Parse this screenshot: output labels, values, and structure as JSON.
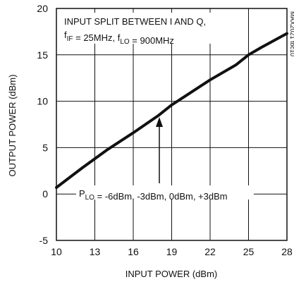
{
  "chart_data": {
    "type": "line",
    "title": "",
    "xlabel": "INPUT POWER (dBm)",
    "ylabel": "OUTPUT POWER (dBm)",
    "xlim": [
      10,
      28
    ],
    "ylim": [
      -5,
      20
    ],
    "x_ticks": [
      "10",
      "13",
      "16",
      "19",
      "22",
      "25",
      "28"
    ],
    "y_ticks": [
      "20",
      "15",
      "10",
      "5",
      "0",
      "-5"
    ],
    "grid": true,
    "series": [
      {
        "x": [
          10,
          12,
          14,
          16,
          18,
          19,
          20,
          22,
          24,
          25,
          26,
          28
        ],
        "y": [
          0.7,
          2.8,
          4.8,
          6.6,
          8.5,
          9.6,
          10.5,
          12.3,
          13.9,
          15.0,
          15.8,
          17.3
        ]
      }
    ],
    "annotations": {
      "condition_line1": "INPUT SPLIT BETWEEN I AND Q,",
      "condition_line2": "f_IF = 25MHz, f_LO = 900MHz",
      "plo_label": "P_LO = -6dBm, -3dBm, 0dBm, +3dBm",
      "part_id": "MAX2021 toc10"
    },
    "colors": {
      "line": "#111111",
      "background": "#ffffff"
    }
  }
}
